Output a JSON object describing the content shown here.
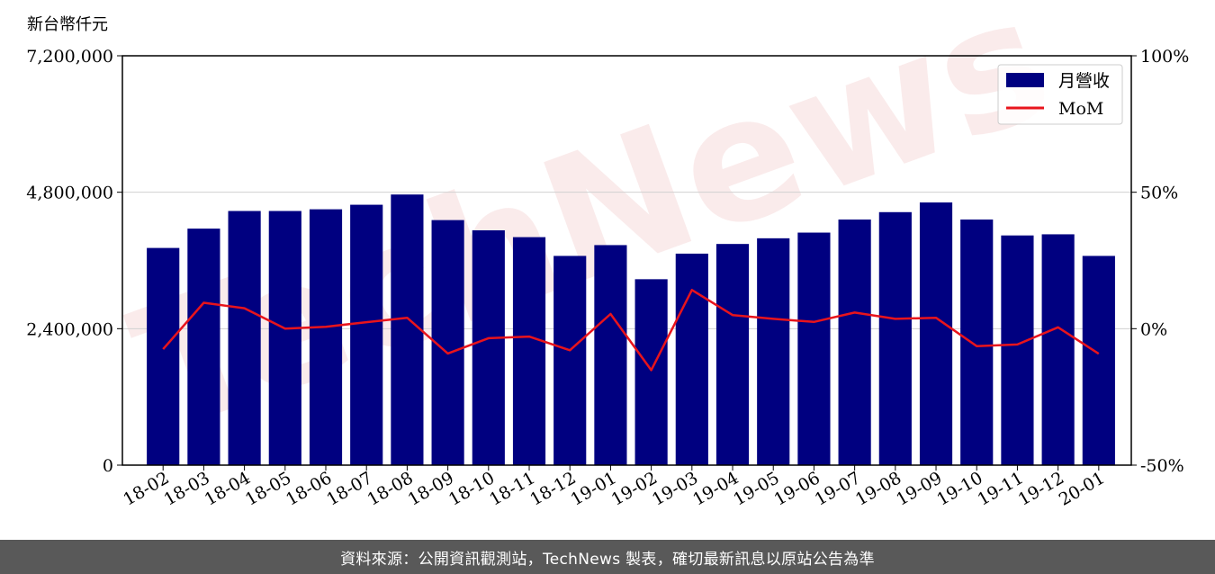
{
  "chart_data": {
    "type": "bar",
    "y_unit_label": "新台幣仟元",
    "categories": [
      "18-02",
      "18-03",
      "18-04",
      "18-05",
      "18-06",
      "18-07",
      "18-08",
      "18-09",
      "18-10",
      "18-11",
      "18-12",
      "19-01",
      "19-02",
      "19-03",
      "19-04",
      "19-05",
      "19-06",
      "19-07",
      "19-08",
      "19-09",
      "19-10",
      "19-11",
      "19-12",
      "20-01"
    ],
    "series": [
      {
        "name": "月營收",
        "axis": "left",
        "color": "#000080",
        "values": [
          3820000,
          4160000,
          4470000,
          4470000,
          4500000,
          4580000,
          4760000,
          4310000,
          4130000,
          4010000,
          3680000,
          3870000,
          3270000,
          3720000,
          3890000,
          3990000,
          4090000,
          4320000,
          4450000,
          4620000,
          4320000,
          4040000,
          4060000,
          3680000
        ]
      },
      {
        "name": "MoM",
        "axis": "right",
        "color": "#e8141c",
        "values": [
          -7.5,
          9.5,
          7.5,
          0.0,
          0.7,
          2.4,
          4.0,
          -9.1,
          -3.5,
          -2.9,
          -7.9,
          5.4,
          -15.2,
          14.2,
          5.0,
          3.6,
          2.5,
          5.9,
          3.6,
          4.0,
          -6.4,
          -5.8,
          0.5,
          -9.2
        ]
      }
    ],
    "y_left": {
      "min": 0,
      "max": 7200000,
      "ticks": [
        "0",
        "2,400,000",
        "4,800,000",
        "7,200,000"
      ],
      "tick_values": [
        0,
        2400000,
        4800000,
        7200000
      ]
    },
    "y_right": {
      "min": -50,
      "max": 100,
      "ticks": [
        "-50%",
        "0%",
        "50%",
        "100%"
      ],
      "tick_values": [
        -50,
        0,
        50,
        100
      ]
    },
    "grid": "horizontal",
    "legend_position": "top-right",
    "watermark": "TechNews"
  },
  "footer": {
    "source_text": "資料來源：公開資訊觀測站，TechNews 製表，確切最新訊息以原站公告為準"
  }
}
